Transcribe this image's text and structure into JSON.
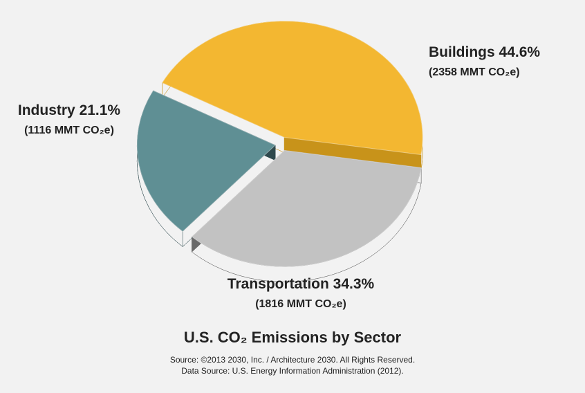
{
  "chart_data": {
    "type": "pie",
    "title": "U.S. CO₂ Emissions by Sector",
    "categories": [
      "Buildings",
      "Transportation",
      "Industry"
    ],
    "values": [
      44.6,
      34.3,
      21.1
    ],
    "value_labels": [
      "44.6%",
      "34.3%",
      "21.1%"
    ],
    "detail_labels": [
      "(2358 MMT CO₂e)",
      "(1816 MMT CO₂e)",
      "(1116 MMT CO₂e)"
    ],
    "colors": [
      "#f3b731",
      "#c2c2c2",
      "#5f8f94"
    ],
    "side_colors": [
      "#c8931a",
      "#6a6a6a",
      "#2e494d"
    ],
    "source": [
      "Source: ©2013 2030, Inc. / Architecture 2030. All Rights Reserved.",
      "Data Source: U.S. Energy Information Administration (2012)."
    ]
  }
}
